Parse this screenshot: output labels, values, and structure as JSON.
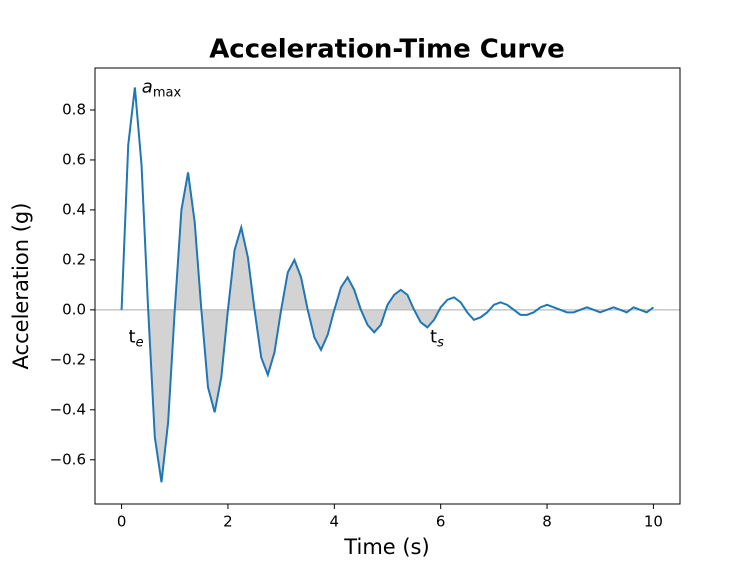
{
  "chart_data": {
    "type": "line",
    "title": "Acceleration-Time Curve",
    "xlabel": "Time (s)",
    "ylabel": "Acceleration (g)",
    "x": [
      0,
      0.125,
      0.25,
      0.375,
      0.5,
      0.625,
      0.75,
      0.875,
      1,
      1.125,
      1.25,
      1.375,
      1.5,
      1.625,
      1.75,
      1.875,
      2,
      2.125,
      2.25,
      2.375,
      2.5,
      2.625,
      2.75,
      2.875,
      3,
      3.125,
      3.25,
      3.375,
      3.5,
      3.625,
      3.75,
      3.875,
      4,
      4.125,
      4.25,
      4.375,
      4.5,
      4.625,
      4.75,
      4.875,
      5,
      5.125,
      5.25,
      5.375,
      5.5,
      5.625,
      5.75,
      5.875,
      6,
      6.125,
      6.25,
      6.375,
      6.5,
      6.625,
      6.75,
      6.875,
      7,
      7.125,
      7.25,
      7.375,
      7.5,
      7.625,
      7.75,
      7.875,
      8,
      8.125,
      8.25,
      8.375,
      8.5,
      8.625,
      8.75,
      8.875,
      9,
      9.125,
      9.25,
      9.375,
      9.5,
      9.625,
      9.75,
      9.875,
      10
    ],
    "series": [
      {
        "color": "#1f77b4",
        "values": [
          0,
          0.66,
          0.89,
          0.58,
          0,
          -0.51,
          -0.69,
          -0.45,
          0,
          0.4,
          0.55,
          0.35,
          0,
          -0.31,
          -0.41,
          -0.27,
          0,
          0.24,
          0.33,
          0.21,
          0,
          -0.19,
          -0.26,
          -0.17,
          0,
          0.15,
          0.2,
          0.13,
          0,
          -0.11,
          -0.16,
          -0.1,
          0,
          0.09,
          0.13,
          0.08,
          0,
          -0.06,
          -0.09,
          -0.06,
          0.02,
          0.06,
          0.08,
          0.06,
          0,
          -0.05,
          -0.07,
          -0.04,
          0.01,
          0.04,
          0.05,
          0.03,
          -0.01,
          -0.04,
          -0.03,
          -0.01,
          0.02,
          0.03,
          0.02,
          0,
          -0.02,
          -0.02,
          -0.01,
          0.01,
          0.02,
          0.01,
          0,
          -0.01,
          -0.01,
          0,
          0.01,
          0,
          -0.01,
          0,
          0.01,
          0,
          -0.01,
          0.01,
          0,
          -0.01,
          0.01
        ]
      }
    ],
    "fill_between": {
      "from": 0.5,
      "to": 6.0,
      "color": "#d3d3d3"
    },
    "zero_line_color": "#bbbbbb",
    "xlim": [
      -0.5,
      10.5
    ],
    "ylim": [
      -0.777,
      0.968
    ],
    "xticks": [
      0,
      2,
      4,
      6,
      8,
      10
    ],
    "yticks": [
      {
        "value": -0.6,
        "label": "−0.6"
      },
      {
        "value": -0.4,
        "label": "−0.4"
      },
      {
        "value": -0.2,
        "label": "−0.2"
      },
      {
        "value": 0,
        "label": "0.0"
      },
      0.2,
      0.4,
      0.6,
      0.8
    ],
    "annotations": [
      {
        "text": "a",
        "sub": "max",
        "x": 0.38,
        "y": 0.89,
        "italic": "base"
      },
      {
        "text": "t",
        "sub": "e",
        "x": 0.13,
        "y": -0.11,
        "italic": "sub"
      },
      {
        "text": "t",
        "sub": "s",
        "x": 5.8,
        "y": -0.11,
        "italic": "sub"
      }
    ]
  }
}
